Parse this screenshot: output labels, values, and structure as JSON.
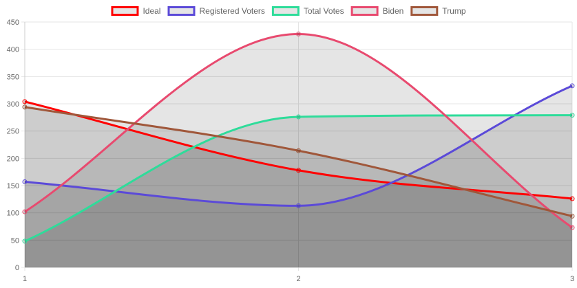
{
  "chart_data": {
    "type": "line",
    "x": [
      1,
      2,
      3
    ],
    "x_ticks": [
      "1",
      "2",
      "3"
    ],
    "y_ticks": [
      "0",
      "50",
      "100",
      "150",
      "200",
      "250",
      "300",
      "350",
      "400",
      "450"
    ],
    "ylim": [
      0,
      450
    ],
    "grid": true,
    "legend_position": "top",
    "fill": true,
    "series": [
      {
        "name": "Ideal",
        "values": [
          304,
          178,
          126
        ],
        "color": "#ff0000"
      },
      {
        "name": "Registered Voters",
        "values": [
          157,
          113,
          333
        ],
        "color": "#5b4ad8"
      },
      {
        "name": "Total Votes",
        "values": [
          48,
          276,
          279
        ],
        "color": "#2edc9a"
      },
      {
        "name": "Biden",
        "values": [
          102,
          428,
          73
        ],
        "color": "#e84a6f"
      },
      {
        "name": "Trump",
        "values": [
          294,
          214,
          94
        ],
        "color": "#a0573a"
      }
    ]
  }
}
